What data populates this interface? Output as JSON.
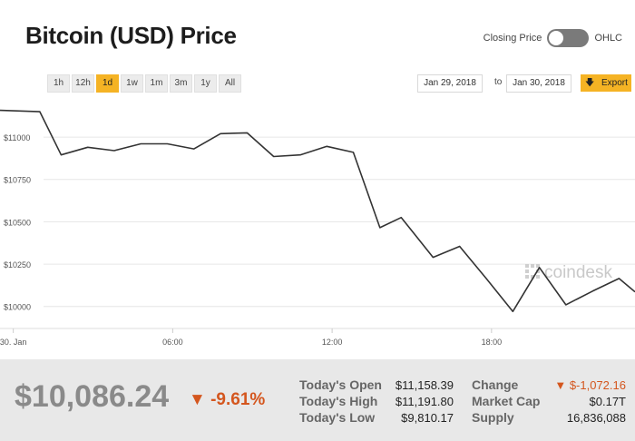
{
  "title": "Bitcoin (USD) Price",
  "toggle": {
    "left_label": "Closing Price",
    "right_label": "OHLC"
  },
  "ranges": [
    "1h",
    "12h",
    "1d",
    "1w",
    "1m",
    "3m",
    "1y",
    "All"
  ],
  "active_range": "1d",
  "date_from": "Jan 29, 2018",
  "date_to_label": "to",
  "date_to": "Jan 30, 2018",
  "export_label": "Export",
  "export_icon": "down-arrow-icon",
  "watermark": "coindesk",
  "colors": {
    "accent": "#f5b324",
    "negative": "#d4561e",
    "line": "#333333"
  },
  "footer": {
    "price": "$10,086.24",
    "change_pct": "▼ -9.61%",
    "stats_left": [
      {
        "label": "Today's Open",
        "value": "$11,158.39"
      },
      {
        "label": "Today's High",
        "value": "$11,191.80"
      },
      {
        "label": "Today's Low",
        "value": "$9,810.17"
      }
    ],
    "stats_right": [
      {
        "label": "Change",
        "value": "▼ $-1,072.16"
      },
      {
        "label": "Market Cap",
        "value": "$0.17T"
      },
      {
        "label": "Supply",
        "value": "16,836,088"
      }
    ]
  },
  "chart_data": {
    "type": "line",
    "title": "",
    "xlabel": "",
    "ylabel": "",
    "grid": true,
    "ylim": [
      9870,
      11220
    ],
    "xlim": [
      -0.5,
      23.4
    ],
    "y_ticks": [
      10000,
      10250,
      10500,
      10750,
      11000
    ],
    "y_tick_labels": [
      "$10000",
      "$10250",
      "$10500",
      "$10750",
      "$11000"
    ],
    "x_ticks": [
      0,
      6,
      12,
      18
    ],
    "x_tick_labels": [
      "30. Jan",
      "06:00",
      "12:00",
      "18:00"
    ],
    "series": [
      {
        "x": [
          -0.5,
          1.0,
          1.8,
          2.8,
          3.8,
          4.8,
          5.8,
          6.8,
          7.8,
          8.8,
          9.8,
          10.8,
          11.8,
          12.8,
          13.8,
          14.6,
          15.8,
          16.8,
          17.8,
          18.8,
          19.8,
          20.8,
          21.8,
          22.8,
          23.4
        ],
        "y": [
          11158,
          11150,
          10895,
          10940,
          10920,
          10960,
          10960,
          10930,
          11020,
          11025,
          10885,
          10895,
          10945,
          10910,
          10465,
          10525,
          10290,
          10355,
          10165,
          9970,
          10230,
          10010,
          10090,
          10165,
          10086
        ]
      }
    ]
  }
}
